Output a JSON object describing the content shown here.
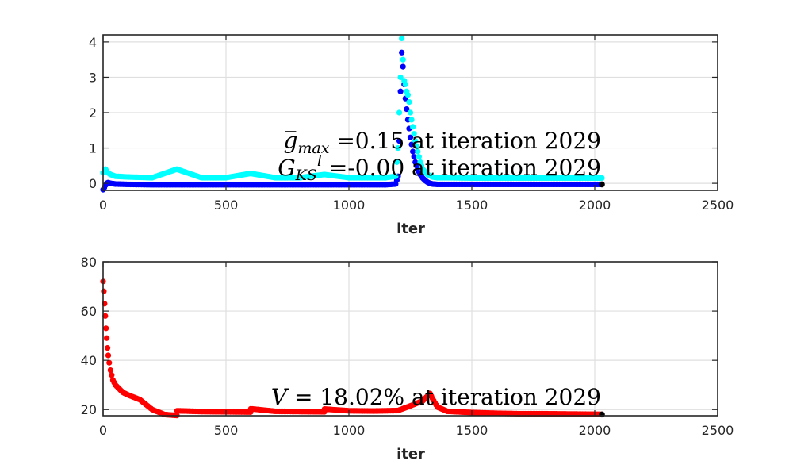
{
  "chart_data": [
    {
      "type": "scatter",
      "xlabel": "iter",
      "ylabel": "",
      "xlim": [
        0,
        2500
      ],
      "ylim": [
        -0.2,
        4.2
      ],
      "xticks": [
        0,
        500,
        1000,
        1500,
        2000,
        2500
      ],
      "yticks": [
        0,
        1,
        2,
        3,
        4
      ],
      "grid": true,
      "annotations": [
        {
          "lines": [
            "g",
            "max",
            " =0.15 at iteration 2029"
          ]
        },
        {
          "lines": [
            "G",
            "KS",
            "l",
            " =-0.00 at iteration 2029"
          ]
        }
      ],
      "series": [
        {
          "color": "#0000ff",
          "x": [
            0,
            5,
            10,
            15,
            20,
            30,
            50,
            100,
            200,
            300,
            400,
            500,
            600,
            700,
            800,
            900,
            1000,
            1100,
            1150,
            1190,
            1200,
            1205,
            1210,
            1215,
            1220,
            1225,
            1230,
            1240,
            1250,
            1260,
            1270,
            1280,
            1290,
            1300,
            1310,
            1320,
            1330,
            1340,
            1360,
            1400,
            1500,
            1600,
            1700,
            1800,
            1900,
            2000,
            2029
          ],
          "y": [
            -0.18,
            -0.12,
            -0.05,
            0.0,
            0.02,
            0.0,
            -0.02,
            -0.03,
            -0.04,
            -0.04,
            -0.04,
            -0.04,
            -0.04,
            -0.04,
            -0.04,
            -0.04,
            -0.04,
            -0.04,
            -0.04,
            -0.02,
            0.2,
            1.2,
            2.6,
            3.7,
            3.3,
            2.8,
            2.4,
            1.8,
            1.3,
            0.9,
            0.6,
            0.4,
            0.25,
            0.15,
            0.08,
            0.03,
            0.0,
            -0.02,
            -0.03,
            -0.03,
            -0.03,
            -0.03,
            -0.03,
            -0.03,
            -0.03,
            -0.03,
            -0.03
          ]
        },
        {
          "color": "#00ffff",
          "x": [
            0,
            5,
            10,
            15,
            20,
            30,
            50,
            100,
            200,
            300,
            400,
            500,
            600,
            700,
            800,
            900,
            1000,
            1100,
            1150,
            1190,
            1200,
            1205,
            1210,
            1215,
            1220,
            1225,
            1230,
            1235,
            1240,
            1245,
            1250,
            1260,
            1270,
            1280,
            1290,
            1300,
            1320,
            1340,
            1360,
            1400,
            1500,
            1600,
            1700,
            1800,
            1900,
            2000,
            2029
          ],
          "y": [
            0.3,
            0.38,
            0.4,
            0.35,
            0.3,
            0.25,
            0.2,
            0.18,
            0.16,
            0.4,
            0.16,
            0.16,
            0.28,
            0.16,
            0.16,
            0.25,
            0.16,
            0.16,
            0.16,
            0.2,
            1.0,
            2.0,
            3.0,
            4.1,
            3.5,
            2.9,
            2.8,
            2.6,
            2.5,
            2.3,
            2.0,
            1.6,
            1.2,
            0.9,
            0.6,
            0.4,
            0.25,
            0.18,
            0.16,
            0.16,
            0.15,
            0.15,
            0.15,
            0.15,
            0.15,
            0.15,
            0.15
          ]
        }
      ]
    },
    {
      "type": "scatter",
      "xlabel": "iter",
      "ylabel": "",
      "xlim": [
        0,
        2500
      ],
      "ylim": [
        17.5,
        80
      ],
      "xticks": [
        0,
        500,
        1000,
        1500,
        2000,
        2500
      ],
      "yticks": [
        20,
        40,
        60,
        80
      ],
      "grid": true,
      "annotations": [
        {
          "lines": [
            "V",
            " = 18.02% at iteration 2029"
          ]
        }
      ],
      "series": [
        {
          "color": "#ff0000",
          "x": [
            0,
            3,
            6,
            9,
            12,
            15,
            18,
            21,
            25,
            30,
            35,
            40,
            50,
            60,
            80,
            100,
            150,
            200,
            250,
            300,
            301,
            400,
            500,
            600,
            601,
            700,
            800,
            900,
            901,
            1000,
            1100,
            1200,
            1250,
            1300,
            1320,
            1330,
            1340,
            1360,
            1400,
            1500,
            1600,
            1700,
            1800,
            1900,
            2000,
            2029
          ],
          "y": [
            72,
            68,
            63,
            58,
            53,
            49,
            45,
            42,
            39,
            36,
            34,
            32,
            30,
            29,
            27,
            26,
            24,
            20,
            18,
            17.6,
            19.5,
            19.2,
            19.1,
            19.0,
            20.3,
            19.3,
            19.2,
            19.1,
            20.2,
            19.5,
            19.4,
            19.6,
            21.5,
            23.5,
            25.5,
            26.5,
            24.5,
            21,
            19.3,
            18.8,
            18.5,
            18.3,
            18.3,
            18.2,
            18.1,
            18.02
          ]
        }
      ]
    }
  ]
}
